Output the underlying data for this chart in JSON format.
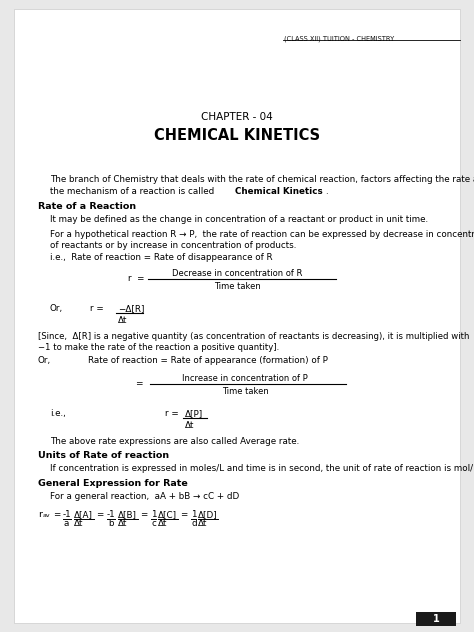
{
  "bg_color": "#e8e8e8",
  "page_color": "#ffffff",
  "header_text": "(CLASS XII) TUITION - CHEMISTRY",
  "chapter_label": "CHAPTER - 04",
  "chapter_title": "CHEMICAL KINETICS",
  "page_num": "1"
}
